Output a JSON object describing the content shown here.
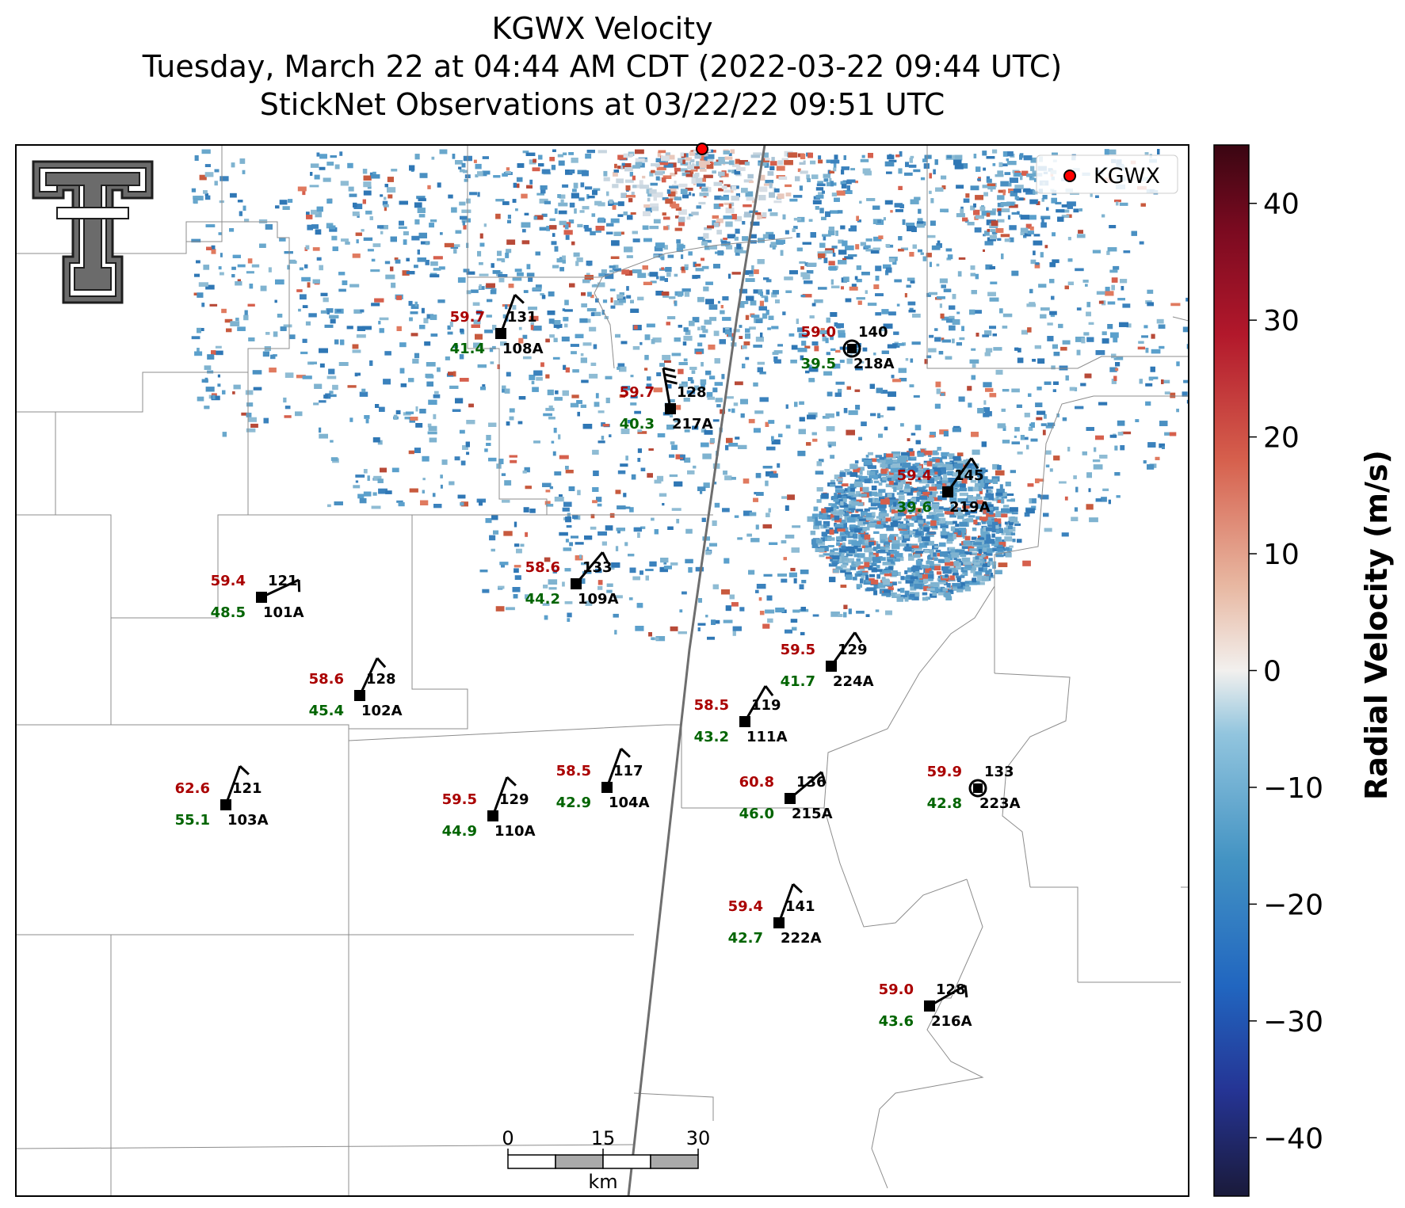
{
  "title": {
    "line1": "KGWX Velocity",
    "line2": "Tuesday, March 22 at 04:44 AM CDT (2022-03-22 09:44 UTC)",
    "line3": "StickNet Observations at 03/22/22 09:51 UTC"
  },
  "legend": {
    "label": "KGWX"
  },
  "colorbar": {
    "label": "Radial Velocity (m/s)",
    "range": [
      -45,
      45
    ],
    "ticks": [
      {
        "value": 40,
        "label": "40"
      },
      {
        "value": 30,
        "label": "30"
      },
      {
        "value": 20,
        "label": "20"
      },
      {
        "value": 10,
        "label": "10"
      },
      {
        "value": 0,
        "label": "0"
      },
      {
        "value": -10,
        "label": "−10"
      },
      {
        "value": -20,
        "label": "−20"
      },
      {
        "value": -30,
        "label": "−30"
      },
      {
        "value": -40,
        "label": "−40"
      }
    ]
  },
  "scalebar": {
    "ticks": [
      "0",
      "15",
      "30"
    ],
    "unit": "km"
  },
  "colors": {
    "temp": "#aa0000",
    "dewpoint": "#006400",
    "radar_site": "#ff0000"
  },
  "chart_data": {
    "type": "scatter",
    "description_fields": [
      "temperature",
      "dewpoint",
      "pressure",
      "station"
    ],
    "stations": [
      {
        "id": "108A",
        "temp": "59.7",
        "dew": "41.4",
        "pres": "131",
        "wind_deg": 160,
        "barbs": 1
      },
      {
        "id": "218A",
        "temp": "59.0",
        "dew": "39.5",
        "pres": "140",
        "wind_deg": 0,
        "barbs": 0,
        "calm": true
      },
      {
        "id": "217A",
        "temp": "59.7",
        "dew": "40.3",
        "pres": "128",
        "wind_deg": 190,
        "barbs": 3
      },
      {
        "id": "219A",
        "temp": "59.4",
        "dew": "39.6",
        "pres": "145",
        "wind_deg": 145,
        "barbs": 1
      },
      {
        "id": "101A",
        "temp": "59.4",
        "dew": "48.5",
        "pres": "121",
        "wind_deg": 115,
        "barbs": 1
      },
      {
        "id": "109A",
        "temp": "58.6",
        "dew": "44.2",
        "pres": "133",
        "wind_deg": 140,
        "barbs": 1
      },
      {
        "id": "102A",
        "temp": "58.6",
        "dew": "45.4",
        "pres": "128",
        "wind_deg": 155,
        "barbs": 1
      },
      {
        "id": "224A",
        "temp": "59.5",
        "dew": "41.7",
        "pres": "129",
        "wind_deg": 145,
        "barbs": 1
      },
      {
        "id": "111A",
        "temp": "58.5",
        "dew": "43.2",
        "pres": "119",
        "wind_deg": 150,
        "barbs": 1
      },
      {
        "id": "215A",
        "temp": "60.8",
        "dew": "46.0",
        "pres": "136",
        "wind_deg": 130,
        "barbs": 1
      },
      {
        "id": "223A",
        "temp": "59.9",
        "dew": "42.8",
        "pres": "133",
        "wind_deg": 0,
        "barbs": 0,
        "calm": true
      },
      {
        "id": "103A",
        "temp": "62.6",
        "dew": "55.1",
        "pres": "121",
        "wind_deg": 160,
        "barbs": 1
      },
      {
        "id": "110A",
        "temp": "59.5",
        "dew": "44.9",
        "pres": "129",
        "wind_deg": 160,
        "barbs": 1
      },
      {
        "id": "104A",
        "temp": "58.5",
        "dew": "42.9",
        "pres": "117",
        "wind_deg": 160,
        "barbs": 1
      },
      {
        "id": "222A",
        "temp": "59.4",
        "dew": "42.7",
        "pres": "141",
        "wind_deg": 160,
        "barbs": 1
      },
      {
        "id": "216A",
        "temp": "59.0",
        "dew": "43.6",
        "pres": "128",
        "wind_deg": 120,
        "barbs": 1
      }
    ]
  }
}
